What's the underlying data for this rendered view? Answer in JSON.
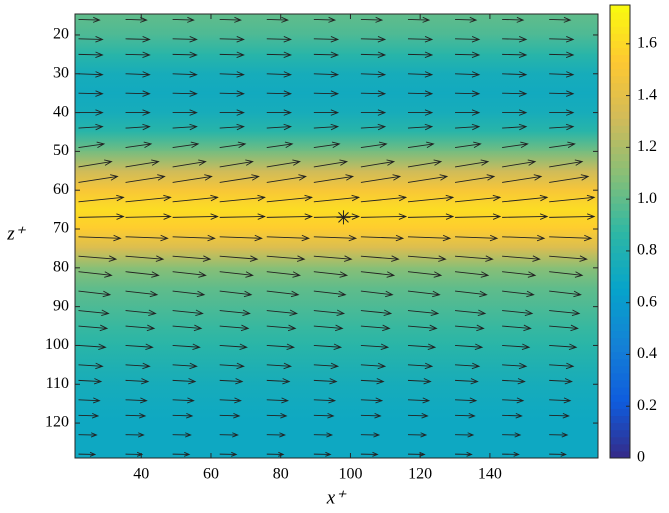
{
  "chart_data": {
    "type": "quiver",
    "xlabel": "x⁺",
    "ylabel": "z⁺",
    "xlim": [
      21,
      171
    ],
    "ylim": [
      14.6,
      129
    ],
    "y_reversed": true,
    "xticks": [
      40,
      60,
      80,
      100,
      120,
      140
    ],
    "yticks": [
      20,
      30,
      40,
      50,
      60,
      70,
      80,
      90,
      100,
      110,
      120
    ],
    "colormap": "parula",
    "clim": [
      0,
      1.75
    ],
    "colorbar_ticks": [
      0,
      0.2,
      0.4,
      0.6,
      0.8,
      {
        "value": 1.0,
        "label": "1.0"
      },
      1.2,
      1.4,
      1.6
    ],
    "field": {
      "z": [
        14.6,
        20,
        25,
        30,
        35,
        40,
        45,
        50,
        55,
        60,
        65,
        70,
        75,
        80,
        85,
        90,
        95,
        100,
        105,
        110,
        115,
        120,
        125,
        129
      ],
      "values": [
        1.0,
        0.95,
        0.85,
        0.75,
        0.72,
        0.75,
        0.85,
        1.05,
        1.3,
        1.5,
        1.62,
        1.55,
        1.35,
        1.1,
        1.0,
        0.95,
        0.9,
        0.85,
        0.8,
        0.75,
        0.72,
        0.7,
        0.7,
        0.7
      ]
    },
    "quiver": {
      "x": [
        22,
        35.5,
        49,
        62.5,
        76,
        89.5,
        103,
        116.5,
        130,
        143.5,
        157
      ],
      "z": [
        16,
        21,
        25,
        30,
        35,
        40,
        44,
        49,
        54,
        58,
        63,
        67,
        72,
        77,
        81,
        86,
        91,
        95,
        100,
        105,
        109,
        114,
        118,
        123,
        128
      ],
      "u": [
        0.7,
        0.8,
        0.8,
        0.8,
        0.8,
        0.8,
        0.8,
        0.85,
        1.1,
        1.3,
        1.5,
        1.5,
        1.4,
        1.25,
        1.1,
        1.05,
        1.0,
        0.95,
        0.9,
        0.8,
        0.75,
        0.7,
        0.65,
        0.6,
        0.55
      ],
      "w": [
        0.02,
        0.02,
        0.02,
        0.03,
        0.02,
        0,
        -0.05,
        -0.12,
        -0.18,
        -0.2,
        -0.15,
        -0.03,
        0.05,
        0.1,
        0.12,
        0.12,
        0.1,
        0.08,
        0.06,
        0.05,
        0.04,
        0.03,
        0.02,
        0.01,
        0.01
      ],
      "color": "#222222"
    },
    "marker": {
      "x": 98,
      "z": 67,
      "symbol": "*"
    }
  }
}
